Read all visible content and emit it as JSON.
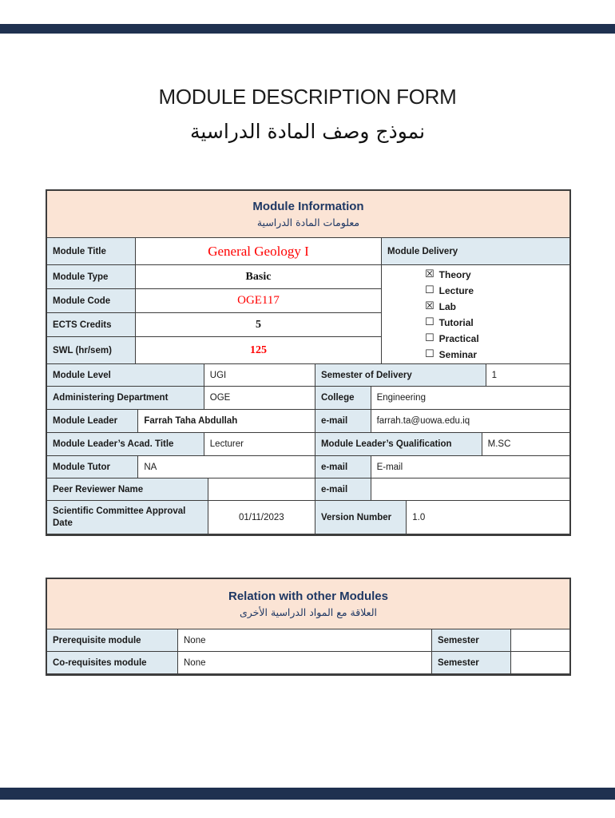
{
  "page": {
    "title_en": "MODULE DESCRIPTION FORM",
    "title_ar": "نموذج وصف المادة الدراسية"
  },
  "colors": {
    "accent_navy": "#1F3864",
    "header_peach": "#FBE4D5",
    "label_blue": "#DEEAF1",
    "value_red": "#FF0000",
    "chrome_bar_navy": "#1F3150"
  },
  "module_info": {
    "header_en": "Module Information",
    "header_ar": "معلومات المادة الدراسية",
    "title_label": "Module Title",
    "title_value": "General Geology I",
    "delivery_label": "Module Delivery",
    "delivery_options": [
      {
        "box": "☒",
        "label": "Theory",
        "checked": true
      },
      {
        "box": "☐",
        "label": "Lecture",
        "checked": false
      },
      {
        "box": "☒",
        "label": "Lab",
        "checked": true
      },
      {
        "box": "☐",
        "label": "Tutorial",
        "checked": false
      },
      {
        "box": "☐",
        "label": "Practical",
        "checked": false
      },
      {
        "box": "☐",
        "label": "Seminar",
        "checked": false
      }
    ],
    "type_label": "Module Type",
    "type_value": "Basic",
    "code_label": "Module Code",
    "code_value": "OGE117",
    "ects_label": "ECTS Credits",
    "ects_value": "5",
    "swl_label": "SWL (hr/sem)",
    "swl_value": "125",
    "level": {
      "l1": "Module Level",
      "v1": "UGI",
      "l2": "Semester of Delivery",
      "v2": "1"
    },
    "dept": {
      "l1": "Administering Department",
      "v1": "OGE",
      "l2": "College",
      "v2": "Engineering"
    },
    "leader": {
      "l1": "Module Leader",
      "v1": "Farrah Taha Abdullah",
      "l2": "e-mail",
      "v2": "farrah.ta@uowa.edu.iq"
    },
    "acad": {
      "l1": "Module Leader’s Acad. Title",
      "v1": "Lecturer",
      "l2": "Module Leader’s Qualification",
      "v2": "M.SC"
    },
    "tutor": {
      "l1": "Module Tutor",
      "v1": "NA",
      "l2": "e-mail",
      "v2": "E-mail"
    },
    "peer": {
      "l1": "Peer Reviewer Name",
      "v1": "",
      "l2": "e-mail",
      "v2": ""
    },
    "approval": {
      "l1": "Scientific Committee Approval Date",
      "v1": "01/11/2023",
      "l2": "Version Number",
      "v2": "1.0"
    }
  },
  "relation": {
    "header_en": "Relation with other Modules",
    "header_ar": "العلاقة مع المواد الدراسية الأخرى",
    "prereq": {
      "label": "Prerequisite module",
      "value": "None",
      "sem_label": "Semester",
      "sem_value": ""
    },
    "coreq": {
      "label": "Co-requisites module",
      "value": "None",
      "sem_label": "Semester",
      "sem_value": ""
    }
  }
}
